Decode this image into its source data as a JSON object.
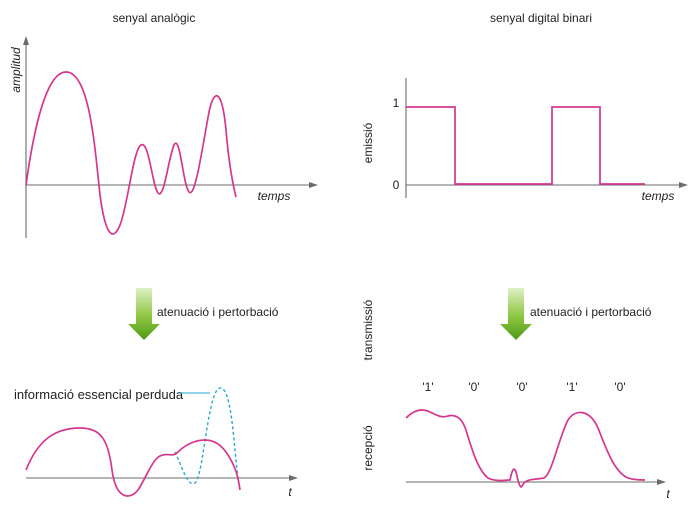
{
  "analog": {
    "title": "senyal analògic",
    "y_label": "amplitud",
    "x_label": "temps",
    "arrow_label": "atenuació i pertorbació",
    "received_x_label": "t",
    "lost_info_label": "informació essencial perduda"
  },
  "digital": {
    "title": "senyal digital binari",
    "emission_label": "emissió",
    "transmission_label": "transmissió",
    "reception_label": "recepció",
    "level_high": "1",
    "level_low": "0",
    "x_label": "temps",
    "arrow_label": "atenuació i pertorbació",
    "received_x_label": "t",
    "bits": [
      "'1'",
      "'0'",
      "'0'",
      "'1'",
      "'0'"
    ]
  },
  "colors": {
    "signal": "#d5378e",
    "lost_signal": "#2aa7cf",
    "arrow_green": "#5aa61c",
    "axis": "#6b6b6b"
  }
}
